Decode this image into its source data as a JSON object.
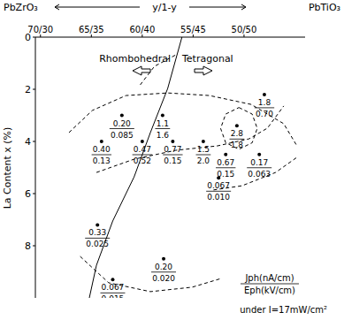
{
  "chart_data": {
    "type": "scatter",
    "color": "#000000",
    "title_left": "PbZrO₃",
    "title_right": "PbTiO₃",
    "x_label": "y/1-y",
    "y_label": "La Content x (%)",
    "xlim": [
      70.5,
      44
    ],
    "xticks": [
      {
        "value": 70,
        "label": "70/30"
      },
      {
        "value": 65,
        "label": "65/35"
      },
      {
        "value": 60,
        "label": "60/40"
      },
      {
        "value": 55,
        "label": "55/45"
      },
      {
        "value": 50,
        "label": "50/50"
      }
    ],
    "ylim": [
      0,
      10
    ],
    "yticks": [
      0,
      2,
      4,
      6,
      8
    ],
    "annotations": [
      "Rhombohedral",
      "Tetragonal"
    ],
    "key_numerator": "Jph(nA/cm)",
    "key_denominator": "Eph(kV/cm)",
    "condition": "under I=17mW/cm²",
    "points": {
      "x": [
        62,
        58,
        64,
        60,
        57,
        54,
        50.7,
        48,
        51.8,
        48.5,
        52.5,
        64.4,
        57.9,
        62.9
      ],
      "y": [
        3,
        3,
        4,
        4,
        4,
        4,
        3.4,
        2.2,
        4.5,
        4.5,
        5.4,
        7.2,
        8.5,
        9.3
      ],
      "j_ph": [
        0.2,
        1.1,
        0.4,
        0.47,
        0.77,
        1.5,
        2.8,
        1.8,
        0.67,
        0.17,
        0.067,
        0.33,
        0.2,
        0.067
      ],
      "j_ph_labels": [
        "0.20",
        "1.1",
        "0.40",
        "0.47",
        "0.77",
        "1.5",
        "2.8",
        "1.8",
        "0.67",
        "0.17",
        "0.067",
        "0.33",
        "0.20",
        "0.067"
      ],
      "e_ph": [
        0.085,
        1.6,
        0.13,
        0.52,
        0.15,
        2.0,
        1.8,
        0.7,
        0.15,
        0.063,
        0.01,
        0.025,
        0.02,
        0.015
      ],
      "e_ph_labels": [
        "0.085",
        "1.6",
        "0.13",
        "0.52",
        "0.15",
        "2.0",
        "1.8",
        "0.70",
        "0.15",
        "0.063",
        "0.010",
        "0.025",
        "0.020",
        "0.015"
      ]
    },
    "lines": [
      {
        "line_style": "solid",
        "x": [
          56.1,
          57.5,
          59.2,
          60.8,
          62.9,
          64.5,
          65.2
        ],
        "y": [
          0,
          1.97,
          3.66,
          5.36,
          7.05,
          8.75,
          10.0
        ]
      },
      {
        "line_style": "dashed",
        "x": [
          60.2,
          58.8,
          56.7
        ],
        "y": [
          1.83,
          1.12,
          0.68
        ]
      },
      {
        "line_style": "dashed",
        "x": [
          67.2,
          64.9,
          61.6,
          57.5,
          53.4,
          49.3,
          46.1,
          44.8
        ],
        "y": [
          3.66,
          2.81,
          2.24,
          2.14,
          2.24,
          2.58,
          3.32,
          4.17
        ]
      },
      {
        "line_style": "dashed",
        "x": [
          64.5,
          60.8,
          56.7,
          52.6,
          49.5,
          47.7,
          46.1
        ],
        "y": [
          5.19,
          4.68,
          4.34,
          4.17,
          3.9,
          3.49,
          2.64
        ]
      },
      {
        "line_style": "dashed",
        "x": [
          53,
          50.2,
          46.9,
          44.8
        ],
        "y": [
          5.86,
          5.7,
          5.19,
          4.61
        ]
      },
      {
        "line_style": "dashed",
        "x": [
          50.5,
          49.2,
          48.7,
          49.2,
          50.5,
          51.8,
          52.3,
          51.8,
          50.5
        ],
        "y": [
          2.7,
          2.95,
          3.5,
          4.05,
          4.3,
          4.05,
          3.5,
          2.95,
          2.7
        ]
      },
      {
        "line_style": "dashed",
        "x": [
          66.1,
          63.3,
          59.2,
          55.1,
          52.2
        ],
        "y": [
          8.41,
          9.42,
          9.76,
          9.59,
          9.25
        ]
      }
    ]
  }
}
